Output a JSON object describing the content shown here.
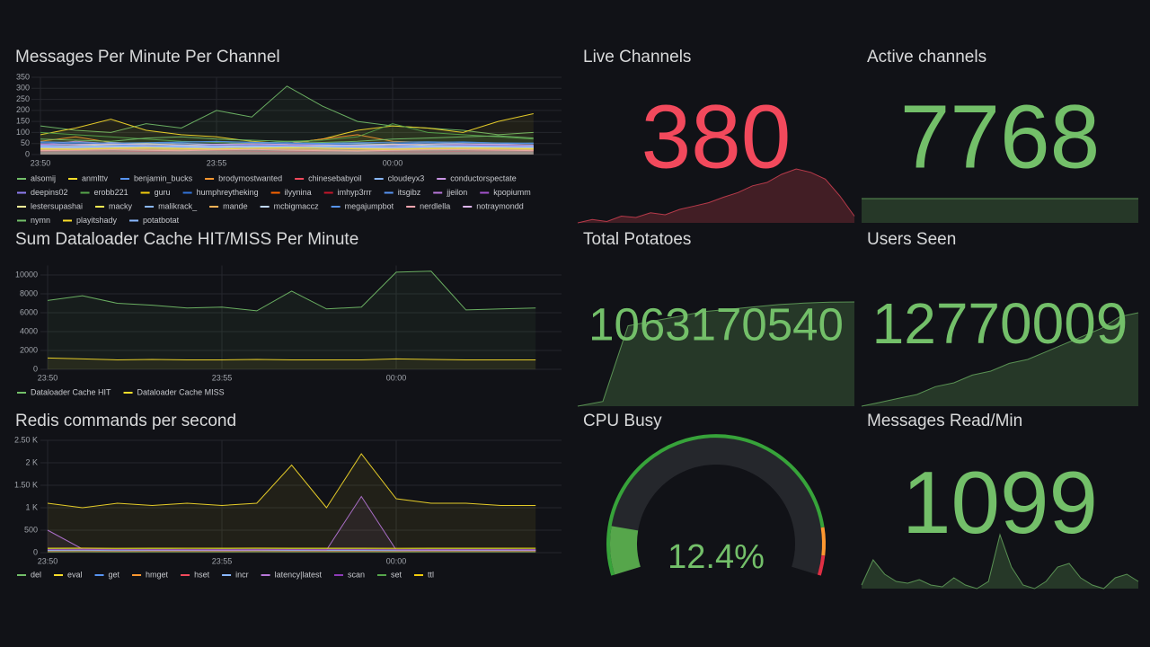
{
  "chart_data": [
    {
      "type": "line",
      "title": "Messages Per Minute Per Channel",
      "x": [
        "23:50",
        "23:51",
        "23:52",
        "23:53",
        "23:54",
        "23:55",
        "23:56",
        "23:57",
        "23:58",
        "23:59",
        "00:00",
        "00:01",
        "00:02",
        "00:03",
        "00:04"
      ],
      "xticks": [
        "23:50",
        "23:55",
        "00:00"
      ],
      "ylim": [
        0,
        350
      ],
      "yticks": [
        0,
        50,
        100,
        150,
        200,
        250,
        300,
        350
      ],
      "grid": true,
      "series": [
        {
          "name": "alsomij",
          "color": "#73bf69",
          "values": [
            130,
            110,
            100,
            140,
            120,
            200,
            170,
            310,
            220,
            150,
            130,
            120,
            110,
            90,
            100
          ]
        },
        {
          "name": "anmlttv",
          "color": "#fade2a",
          "values": [
            90,
            120,
            160,
            110,
            90,
            80,
            60,
            50,
            70,
            110,
            130,
            120,
            100,
            150,
            185
          ]
        },
        {
          "name": "benjamin_bucks",
          "color": "#5794f2",
          "values": [
            40,
            35,
            45,
            38,
            42,
            36,
            40,
            44,
            39,
            41,
            37,
            43,
            40,
            38,
            42
          ]
        },
        {
          "name": "brodymostwanted",
          "color": "#ff9830",
          "values": [
            60,
            80,
            55,
            50,
            45,
            40,
            35,
            50,
            70,
            90,
            60,
            55,
            50,
            45,
            40
          ]
        },
        {
          "name": "chinesebabyoil",
          "color": "#f2495c",
          "values": [
            30,
            28,
            32,
            35,
            30,
            27,
            29,
            31,
            33,
            30,
            28,
            26,
            30,
            32,
            29
          ]
        },
        {
          "name": "cloudeyx3",
          "color": "#8ab8ff",
          "values": [
            50,
            45,
            55,
            48,
            52,
            46,
            50,
            54,
            49,
            51,
            47,
            53,
            50,
            48,
            52
          ]
        },
        {
          "name": "conductorspectate",
          "color": "#ca95e5",
          "values": [
            45,
            60,
            50,
            40,
            35,
            30,
            38,
            42,
            36,
            40,
            44,
            38,
            35,
            33,
            37
          ]
        },
        {
          "name": "deepins02",
          "color": "#8f7cf0",
          "values": [
            35,
            30,
            28,
            32,
            36,
            40,
            34,
            30,
            28,
            26,
            30,
            34,
            38,
            32,
            30
          ]
        },
        {
          "name": "erobb221",
          "color": "#56a64b",
          "values": [
            100,
            90,
            80,
            70,
            60,
            55,
            50,
            60,
            65,
            80,
            140,
            100,
            90,
            80,
            70
          ]
        },
        {
          "name": "guru",
          "color": "#f2cc0c",
          "values": [
            25,
            30,
            28,
            26,
            24,
            22,
            26,
            28,
            30,
            27,
            25,
            23,
            26,
            28,
            24
          ]
        },
        {
          "name": "humphreytheking",
          "color": "#3274d9",
          "values": [
            55,
            50,
            48,
            52,
            56,
            60,
            54,
            50,
            48,
            46,
            50,
            54,
            58,
            52,
            50
          ]
        },
        {
          "name": "ilyynina",
          "color": "#fa6400",
          "values": [
            20,
            22,
            24,
            21,
            19,
            23,
            25,
            22,
            20,
            18,
            21,
            23,
            24,
            22,
            20
          ]
        },
        {
          "name": "imhyp3rrr",
          "color": "#c4162a",
          "values": [
            15,
            18,
            16,
            14,
            17,
            19,
            15,
            13,
            16,
            18,
            14,
            12,
            15,
            17,
            16
          ]
        },
        {
          "name": "itsgibz",
          "color": "#5794f2",
          "values": [
            42,
            38,
            40,
            44,
            46,
            41,
            39,
            43,
            45,
            40,
            38,
            42,
            44,
            41,
            39
          ]
        },
        {
          "name": "jjeilon",
          "color": "#b877d9",
          "values": [
            30,
            32,
            34,
            31,
            29,
            33,
            35,
            32,
            30,
            28,
            31,
            33,
            34,
            32,
            30
          ]
        },
        {
          "name": "kpopiumm",
          "color": "#a352cc",
          "values": [
            48,
            44,
            40,
            36,
            38,
            42,
            46,
            44,
            40,
            38,
            36,
            40,
            44,
            42,
            40
          ]
        },
        {
          "name": "lestersupashai",
          "color": "#fff899",
          "values": [
            35,
            40,
            45,
            50,
            42,
            38,
            34,
            36,
            40,
            44,
            48,
            42,
            38,
            36,
            34
          ]
        },
        {
          "name": "macky",
          "color": "#ffee52",
          "values": [
            28,
            26,
            30,
            32,
            29,
            27,
            31,
            33,
            30,
            28,
            26,
            29,
            31,
            30,
            28
          ]
        },
        {
          "name": "malikrack_",
          "color": "#8ab8ff",
          "values": [
            38,
            36,
            34,
            37,
            39,
            35,
            33,
            36,
            38,
            40,
            37,
            35,
            34,
            36,
            38
          ]
        },
        {
          "name": "mande",
          "color": "#ffb357",
          "values": [
            22,
            25,
            27,
            24,
            21,
            26,
            28,
            25,
            22,
            20,
            23,
            26,
            27,
            24,
            22
          ]
        },
        {
          "name": "mcbigmaccz",
          "color": "#c0d8ff",
          "values": [
            33,
            31,
            35,
            37,
            34,
            32,
            36,
            38,
            35,
            33,
            31,
            34,
            36,
            35,
            33
          ]
        },
        {
          "name": "megajumpbot",
          "color": "#5794f2",
          "values": [
            58,
            55,
            52,
            54,
            57,
            59,
            56,
            53,
            51,
            54,
            56,
            58,
            55,
            53,
            52
          ]
        },
        {
          "name": "nerdlella",
          "color": "#ffa6b0",
          "values": [
            18,
            20,
            22,
            19,
            17,
            21,
            23,
            20,
            18,
            16,
            19,
            21,
            22,
            20,
            18
          ]
        },
        {
          "name": "notraymondd",
          "color": "#deb6f2",
          "values": [
            44,
            46,
            48,
            45,
            43,
            47,
            49,
            46,
            44,
            42,
            45,
            47,
            48,
            46,
            44
          ]
        },
        {
          "name": "nymn",
          "color": "#73bf69",
          "values": [
            70,
            65,
            60,
            75,
            80,
            70,
            65,
            60,
            55,
            60,
            70,
            75,
            80,
            85,
            75
          ]
        },
        {
          "name": "playitshady",
          "color": "#fade2a",
          "values": [
            26,
            24,
            28,
            30,
            27,
            25,
            29,
            31,
            28,
            26,
            24,
            27,
            29,
            28,
            26
          ]
        },
        {
          "name": "potatbotat",
          "color": "#8ab8ff",
          "values": [
            36,
            38,
            40,
            37,
            35,
            39,
            41,
            38,
            36,
            34,
            37,
            39,
            40,
            38,
            36
          ]
        }
      ]
    },
    {
      "type": "stat",
      "title": "Live Channels",
      "value": 380,
      "color": "#f2495c",
      "values": [
        300,
        305,
        302,
        310,
        308,
        315,
        312,
        320,
        325,
        330,
        338,
        345,
        355,
        360,
        372,
        380,
        375,
        365,
        340,
        310
      ]
    },
    {
      "type": "stat",
      "title": "Active channels",
      "value": 7768,
      "color": "#73bf69",
      "values": [
        7768,
        7768,
        7768,
        7768,
        7768,
        7768,
        7768,
        7768,
        7768,
        7768
      ]
    },
    {
      "type": "line",
      "title": "Sum Dataloader Cache HIT/MISS Per Minute",
      "x": [
        "23:50",
        "23:51",
        "23:52",
        "23:53",
        "23:54",
        "23:55",
        "23:56",
        "23:57",
        "23:58",
        "23:59",
        "00:00",
        "00:01",
        "00:02",
        "00:03",
        "00:04"
      ],
      "xticks": [
        "23:50",
        "23:55",
        "00:00"
      ],
      "ylim": [
        0,
        11000
      ],
      "yticks": [
        0,
        2000,
        4000,
        6000,
        8000,
        10000
      ],
      "grid": true,
      "series": [
        {
          "name": "Dataloader Cache HIT",
          "color": "#73bf69",
          "values": [
            7300,
            7800,
            7000,
            6800,
            6500,
            6600,
            6200,
            8300,
            6400,
            6600,
            10300,
            10400,
            6300,
            6400,
            6500
          ]
        },
        {
          "name": "Dataloader Cache MISS",
          "color": "#fade2a",
          "values": [
            1200,
            1100,
            1000,
            1050,
            1000,
            1000,
            1050,
            1000,
            1000,
            1000,
            1100,
            1050,
            1000,
            1000,
            1000
          ]
        }
      ]
    },
    {
      "type": "stat",
      "title": "Total Potatoes",
      "value": 1063170540,
      "color": "#73bf69",
      "values": [
        1062950000,
        1062960000,
        1063120000,
        1063130000,
        1063140000,
        1063150000,
        1063155000,
        1063160000,
        1063165000,
        1063168000,
        1063170000,
        1063170540
      ]
    },
    {
      "type": "stat",
      "title": "Users Seen",
      "value": 12770009,
      "color": "#73bf69",
      "values": [
        12758000,
        12758500,
        12759000,
        12759500,
        12760500,
        12761000,
        12762000,
        12762500,
        12763500,
        12764000,
        12765000,
        12766000,
        12767000,
        12768000,
        12769500,
        12770009
      ]
    },
    {
      "type": "line",
      "title": "Redis commands per second",
      "x": [
        "23:50",
        "23:51",
        "23:52",
        "23:53",
        "23:54",
        "23:55",
        "23:56",
        "23:57",
        "23:58",
        "23:59",
        "00:00",
        "00:01",
        "00:02",
        "00:03",
        "00:04"
      ],
      "xticks": [
        "23:50",
        "23:55",
        "00:00"
      ],
      "ylim": [
        0,
        2500
      ],
      "yticks": [
        0,
        500,
        {
          "value": 1000,
          "label": "1 K"
        },
        {
          "value": 1500,
          "label": "1.50 K"
        },
        {
          "value": 2000,
          "label": "2 K"
        },
        {
          "value": 2500,
          "label": "2.50 K"
        }
      ],
      "grid": true,
      "series": [
        {
          "name": "del",
          "color": "#73bf69",
          "values": [
            90,
            85,
            80,
            82,
            78,
            80,
            84,
            86,
            82,
            80,
            78,
            82,
            84,
            80,
            78
          ]
        },
        {
          "name": "eval",
          "color": "#fade2a",
          "values": [
            1100,
            1000,
            1100,
            1050,
            1100,
            1050,
            1100,
            1950,
            1000,
            2200,
            1200,
            1100,
            1100,
            1050,
            1050
          ]
        },
        {
          "name": "get",
          "color": "#5794f2",
          "values": [
            60,
            58,
            62,
            60,
            59,
            61,
            63,
            60,
            58,
            62,
            60,
            59,
            61,
            60,
            58
          ]
        },
        {
          "name": "hmget",
          "color": "#ff9830",
          "values": [
            40,
            42,
            38,
            41,
            39,
            40,
            42,
            41,
            39,
            40,
            38,
            41,
            40,
            39,
            40
          ]
        },
        {
          "name": "hset",
          "color": "#f2495c",
          "values": [
            30,
            32,
            28,
            31,
            29,
            30,
            32,
            31,
            29,
            30,
            28,
            31,
            30,
            29,
            30
          ]
        },
        {
          "name": "incr",
          "color": "#8ab8ff",
          "values": [
            50,
            52,
            48,
            51,
            49,
            50,
            52,
            51,
            49,
            50,
            48,
            51,
            50,
            49,
            50
          ]
        },
        {
          "name": "latency|latest",
          "color": "#b877d9",
          "values": [
            500,
            80,
            70,
            60,
            60,
            55,
            60,
            70,
            60,
            1250,
            60,
            55,
            60,
            60,
            55
          ]
        },
        {
          "name": "scan",
          "color": "#8f3bb8",
          "values": [
            70,
            72,
            68,
            71,
            69,
            70,
            72,
            71,
            69,
            70,
            68,
            71,
            70,
            69,
            70
          ]
        },
        {
          "name": "set",
          "color": "#56a64b",
          "values": [
            20,
            22,
            18,
            21,
            19,
            20,
            22,
            21,
            19,
            20,
            18,
            21,
            20,
            19,
            20
          ]
        },
        {
          "name": "ttl",
          "color": "#f2cc0c",
          "values": [
            100,
            102,
            98,
            101,
            99,
            100,
            102,
            101,
            99,
            100,
            98,
            101,
            100,
            99,
            100
          ]
        }
      ]
    },
    {
      "type": "gauge",
      "title": "CPU Busy",
      "value": 12.4,
      "value_label": "12.4%",
      "range": [
        0,
        100
      ],
      "color": "#56a64b",
      "thresholds": [
        {
          "value": 0,
          "color": "#37a33a"
        },
        {
          "value": 88,
          "color": "#ff9830"
        },
        {
          "value": 95,
          "color": "#e02f44"
        }
      ]
    },
    {
      "type": "stat",
      "title": "Messages Read/Min",
      "value": 1099,
      "color": "#73bf69",
      "values": [
        760,
        900,
        820,
        780,
        770,
        790,
        760,
        750,
        800,
        760,
        740,
        780,
        1040,
        860,
        760,
        740,
        780,
        860,
        880,
        800,
        760,
        740,
        800,
        820,
        780
      ]
    }
  ]
}
